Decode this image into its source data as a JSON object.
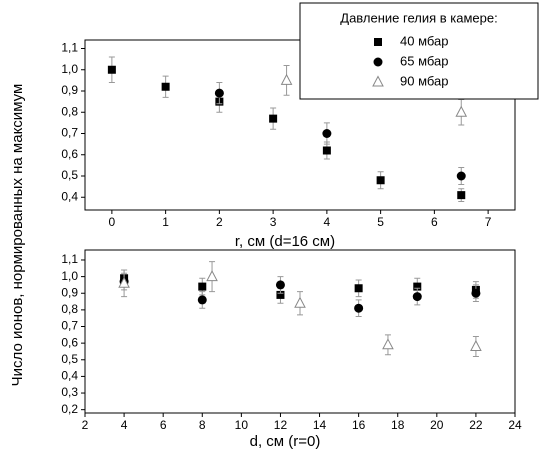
{
  "chart_data": [
    {
      "type": "scatter",
      "ylabel": "Число ионов, нормированных на максимум",
      "xlabel": "r, см (d=16 см)",
      "legend_title": "Давление гелия в камере:",
      "legend": "upper right",
      "xlim": [
        -0.5,
        7.5
      ],
      "xticks": [
        0,
        1,
        2,
        3,
        4,
        5,
        6,
        7
      ],
      "ylim": [
        0.34,
        1.14
      ],
      "yticks": [
        {
          "value": 0.4,
          "label": "0,4"
        },
        {
          "value": 0.5,
          "label": "0,5"
        },
        {
          "value": 0.6,
          "label": "0,6"
        },
        {
          "value": 0.7,
          "label": "0,7"
        },
        {
          "value": 0.8,
          "label": "0,8"
        },
        {
          "value": 0.9,
          "label": "0,9"
        },
        {
          "value": 1.0,
          "label": "1,0"
        },
        {
          "value": 1.1,
          "label": "1,1"
        }
      ],
      "series": [
        {
          "name": "40 мбар",
          "marker": "square",
          "color": "#000000",
          "x": [
            0,
            1,
            2,
            3,
            4,
            5,
            6.5
          ],
          "values": [
            1.0,
            0.92,
            0.85,
            0.77,
            0.62,
            0.48,
            0.41
          ],
          "errors": [
            0.06,
            0.05,
            0.05,
            0.05,
            0.04,
            0.04,
            0.03
          ]
        },
        {
          "name": "65 мбар",
          "marker": "circle",
          "color": "#000000",
          "x": [
            2,
            4,
            6.5
          ],
          "values": [
            0.89,
            0.7,
            0.5
          ],
          "errors": [
            0.05,
            0.05,
            0.04
          ]
        },
        {
          "name": "90 мбар",
          "marker": "triangle",
          "color": "#888888",
          "x": [
            3.25,
            6.5
          ],
          "values": [
            0.95,
            0.8
          ],
          "errors": [
            0.07,
            0.06
          ]
        }
      ]
    },
    {
      "type": "scatter",
      "xlabel": "d, см (r=0)",
      "xlim": [
        2,
        24
      ],
      "xticks": [
        2,
        4,
        6,
        8,
        10,
        12,
        14,
        16,
        18,
        20,
        22,
        24
      ],
      "ylim": [
        0.18,
        1.16
      ],
      "yticks": [
        {
          "value": 0.2,
          "label": "0,2"
        },
        {
          "value": 0.3,
          "label": "0,3"
        },
        {
          "value": 0.4,
          "label": "0,4"
        },
        {
          "value": 0.5,
          "label": "0,5"
        },
        {
          "value": 0.6,
          "label": "0,6"
        },
        {
          "value": 0.7,
          "label": "0,7"
        },
        {
          "value": 0.8,
          "label": "0,8"
        },
        {
          "value": 0.9,
          "label": "0,9"
        },
        {
          "value": 1.0,
          "label": "1,0"
        },
        {
          "value": 1.1,
          "label": "1,1"
        }
      ],
      "series": [
        {
          "marker": "square",
          "color": "#000000",
          "x": [
            4,
            8,
            12,
            16,
            19,
            22
          ],
          "values": [
            0.99,
            0.94,
            0.89,
            0.93,
            0.94,
            0.92
          ],
          "errors": [
            0.05,
            0.05,
            0.05,
            0.05,
            0.05,
            0.05
          ]
        },
        {
          "marker": "circle",
          "color": "#000000",
          "x": [
            4,
            8,
            12,
            16,
            19,
            22
          ],
          "values": [
            0.97,
            0.86,
            0.95,
            0.81,
            0.88,
            0.9
          ],
          "errors": [
            0.05,
            0.05,
            0.05,
            0.05,
            0.05,
            0.05
          ]
        },
        {
          "marker": "triangle",
          "color": "#888888",
          "x": [
            4,
            8.5,
            13,
            17.5,
            22
          ],
          "values": [
            0.96,
            1.0,
            0.84,
            0.59,
            0.58
          ],
          "errors": [
            0.08,
            0.09,
            0.07,
            0.06,
            0.06
          ]
        }
      ]
    }
  ]
}
